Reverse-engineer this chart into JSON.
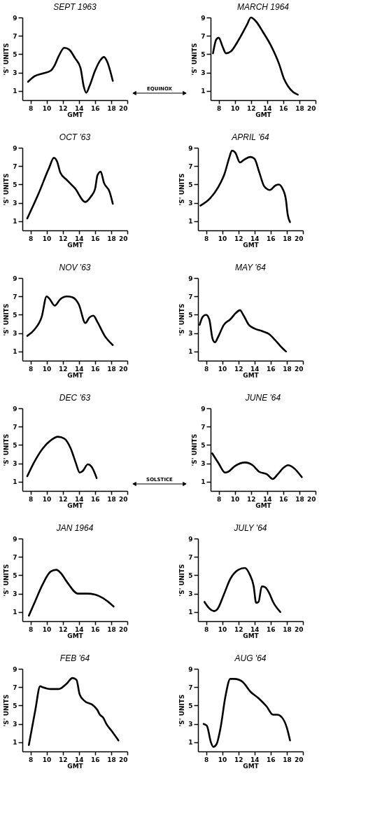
{
  "chart_data": [
    {
      "type": "line",
      "title": "SEPT 1963",
      "xlabel": "GMT",
      "ylabel": "'S' UNITS",
      "xlim": [
        7,
        20
      ],
      "ylim": [
        0,
        9
      ],
      "xticks": [
        8,
        10,
        12,
        14,
        16,
        18,
        20
      ],
      "yticks": [
        1,
        3,
        5,
        7,
        9
      ],
      "grid": false,
      "annotations": [
        "EQUINOX"
      ],
      "series": [
        {
          "color": "#000000",
          "x": [
            7.7,
            8.5,
            9.5,
            10.5,
            11,
            11.5,
            12.2,
            12.8,
            13.5,
            14.2,
            14.6,
            14.9,
            15.3,
            16,
            16.7,
            17.1,
            17.5,
            18.2
          ],
          "values": [
            2.0,
            2.6,
            2.9,
            3.2,
            3.8,
            4.8,
            5.7,
            5.5,
            4.6,
            3.5,
            1.5,
            0.8,
            1.5,
            3.2,
            4.4,
            4.7,
            4.2,
            2.1
          ]
        }
      ]
    },
    {
      "type": "line",
      "title": "MARCH 1964",
      "xlabel": "GMT",
      "ylabel": "'S' UNITS",
      "xlim": [
        7,
        20
      ],
      "ylim": [
        0,
        9
      ],
      "xticks": [
        8,
        10,
        12,
        14,
        16,
        18,
        20
      ],
      "yticks": [
        1,
        3,
        5,
        7,
        9
      ],
      "grid": false,
      "series": [
        {
          "color": "#000000",
          "x": [
            7.3,
            7.7,
            8,
            8.5,
            8.9,
            9.5,
            10.5,
            11.5,
            12,
            12.6,
            13.5,
            14.5,
            15.5,
            16.1,
            16.6,
            17.2,
            17.8
          ],
          "values": [
            5.1,
            6.6,
            6.8,
            5.8,
            5.1,
            5.3,
            6.6,
            8.2,
            9.0,
            8.6,
            7.4,
            5.9,
            3.9,
            2.3,
            1.5,
            0.9,
            0.6
          ]
        }
      ]
    },
    {
      "type": "line",
      "title": "OCT '63",
      "xlabel": "GMT",
      "ylabel": "'S' UNITS",
      "xlim": [
        7,
        20
      ],
      "ylim": [
        0,
        9
      ],
      "xticks": [
        8,
        10,
        12,
        14,
        16,
        18,
        20
      ],
      "yticks": [
        1,
        3,
        5,
        7,
        9
      ],
      "grid": false,
      "series": [
        {
          "color": "#000000",
          "x": [
            7.6,
            9,
            10.3,
            10.9,
            11.3,
            11.7,
            12.5,
            13.5,
            14.8,
            15.5,
            16,
            16.3,
            16.7,
            17.1,
            17.8,
            18.2
          ],
          "values": [
            1.3,
            4.0,
            6.8,
            7.9,
            7.5,
            6.3,
            5.5,
            4.6,
            3.1,
            3.7,
            4.5,
            6.0,
            6.4,
            5.2,
            4.2,
            2.9
          ]
        }
      ]
    },
    {
      "type": "line",
      "title": "APRIL '64",
      "xlabel": "GMT",
      "ylabel": "'S' UNITS",
      "xlim": [
        7,
        20
      ],
      "ylim": [
        0,
        9
      ],
      "xticks": [
        8,
        10,
        12,
        14,
        16,
        18,
        20
      ],
      "yticks": [
        1,
        3,
        5,
        7,
        9
      ],
      "grid": false,
      "series": [
        {
          "color": "#000000",
          "x": [
            7.3,
            8.5,
            9.5,
            10.3,
            10.9,
            11.2,
            11.6,
            12.2,
            12.7,
            13.5,
            14,
            14.6,
            15.2,
            15.9,
            16.6,
            17,
            17.5,
            17.9,
            18.1,
            18.4
          ],
          "values": [
            2.7,
            3.5,
            4.7,
            6.2,
            8.0,
            8.7,
            8.5,
            7.4,
            7.7,
            8.0,
            7.8,
            6.3,
            4.8,
            4.4,
            4.9,
            5.0,
            4.5,
            3.3,
            1.8,
            0.9
          ]
        }
      ]
    },
    {
      "type": "line",
      "title": "NOV '63",
      "xlabel": "GMT",
      "ylabel": "'S' UNITS",
      "xlim": [
        7,
        20
      ],
      "ylim": [
        0,
        9
      ],
      "xticks": [
        8,
        10,
        12,
        14,
        16,
        18,
        20
      ],
      "yticks": [
        1,
        3,
        5,
        7,
        9
      ],
      "grid": false,
      "series": [
        {
          "color": "#000000",
          "x": [
            7.6,
            8.5,
            9.4,
            10,
            10.3,
            11,
            11.7,
            12.5,
            13.2,
            14,
            14.8,
            15.3,
            15.8,
            16.3,
            17.2,
            18.2
          ],
          "values": [
            2.7,
            3.4,
            4.8,
            7.0,
            6.8,
            6.0,
            6.7,
            7.0,
            6.9,
            6.1,
            4.1,
            4.7,
            4.9,
            4.2,
            2.7,
            1.7
          ]
        }
      ]
    },
    {
      "type": "line",
      "title": "MAY '64",
      "xlabel": "GMT",
      "ylabel": "'S' UNITS",
      "xlim": [
        7,
        20
      ],
      "ylim": [
        0,
        9
      ],
      "xticks": [
        8,
        10,
        12,
        14,
        16,
        18,
        20
      ],
      "yticks": [
        1,
        3,
        5,
        7,
        9
      ],
      "grid": false,
      "series": [
        {
          "color": "#000000",
          "x": [
            7.2,
            7.6,
            8,
            8.4,
            8.8,
            9.1,
            9.5,
            10.2,
            11,
            11.7,
            12.2,
            12.6,
            13.3,
            14,
            15,
            15.8,
            16.5,
            17.2,
            17.9
          ],
          "values": [
            3.9,
            4.8,
            5.0,
            4.5,
            2.4,
            2.0,
            2.6,
            3.9,
            4.5,
            5.2,
            5.5,
            5.0,
            3.9,
            3.5,
            3.2,
            2.9,
            2.3,
            1.6,
            1.0
          ]
        }
      ]
    },
    {
      "type": "line",
      "title": "DEC '63",
      "xlabel": "GMT",
      "ylabel": "'S' UNITS",
      "xlim": [
        7,
        20
      ],
      "ylim": [
        0,
        9
      ],
      "xticks": [
        8,
        10,
        12,
        14,
        16,
        18,
        20
      ],
      "yticks": [
        1,
        3,
        5,
        7,
        9
      ],
      "grid": false,
      "annotations": [
        "SOLSTICE"
      ],
      "series": [
        {
          "color": "#000000",
          "x": [
            7.6,
            8.5,
            9.5,
            10.5,
            11.4,
            12.2,
            13,
            13.6,
            14.1,
            14.5,
            15.1,
            15.6,
            16.2
          ],
          "values": [
            1.6,
            3.2,
            4.6,
            5.5,
            5.9,
            5.7,
            4.6,
            3.1,
            2.0,
            2.2,
            2.9,
            2.6,
            1.4
          ]
        }
      ]
    },
    {
      "type": "line",
      "title": "JUNE '64",
      "xlabel": "GMT",
      "ylabel": "'S' UNITS",
      "xlim": [
        7,
        20
      ],
      "ylim": [
        0,
        9
      ],
      "xticks": [
        8,
        10,
        12,
        14,
        16,
        18,
        20
      ],
      "yticks": [
        1,
        3,
        5,
        7,
        9
      ],
      "grid": false,
      "series": [
        {
          "color": "#000000",
          "x": [
            7.2,
            8,
            8.8,
            9.2,
            10,
            11.3,
            12.2,
            13,
            14,
            14.7,
            15.3,
            16,
            16.6,
            17.3,
            18.3
          ],
          "values": [
            4.1,
            3.0,
            2.0,
            2.1,
            2.7,
            3.1,
            2.8,
            2.1,
            1.8,
            1.3,
            1.8,
            2.5,
            2.8,
            2.5,
            1.5
          ]
        }
      ]
    },
    {
      "type": "line",
      "title": "JAN 1964",
      "xlabel": "GMT",
      "ylabel": "'S' UNITS",
      "xlim": [
        7,
        20
      ],
      "ylim": [
        0,
        9
      ],
      "xticks": [
        8,
        10,
        12,
        14,
        16,
        18,
        20
      ],
      "yticks": [
        1,
        3,
        5,
        7,
        9
      ],
      "grid": false,
      "series": [
        {
          "color": "#000000",
          "x": [
            7.8,
            8.5,
            9.5,
            10.5,
            11.2,
            11.8,
            12.5,
            13.9,
            15,
            16,
            17,
            18.3
          ],
          "values": [
            0.6,
            2.0,
            4.0,
            5.4,
            5.6,
            5.2,
            4.3,
            3.0,
            3.0,
            2.9,
            2.5,
            1.6
          ]
        }
      ]
    },
    {
      "type": "line",
      "title": "JULY '64",
      "xlabel": "GMT",
      "ylabel": "'S' UNITS",
      "xlim": [
        7,
        20
      ],
      "ylim": [
        0,
        9
      ],
      "xticks": [
        8,
        10,
        12,
        14,
        16,
        18,
        20
      ],
      "yticks": [
        1,
        3,
        5,
        7,
        9
      ],
      "grid": false,
      "series": [
        {
          "color": "#000000",
          "x": [
            7.8,
            8.4,
            9,
            9.4,
            10.2,
            11,
            12,
            12.8,
            13.4,
            13.9,
            14.2,
            14.5,
            14.9,
            15.3,
            15.8,
            16.3,
            17.2
          ],
          "values": [
            2.1,
            1.4,
            1.1,
            1.3,
            2.9,
            4.6,
            5.6,
            5.8,
            5.1,
            3.8,
            2.0,
            2.1,
            3.8,
            3.7,
            3.1,
            2.1,
            1.0
          ]
        }
      ]
    },
    {
      "type": "line",
      "title": "FEB '64",
      "xlabel": "GMT",
      "ylabel": "'S' UNITS",
      "xlim": [
        7,
        20
      ],
      "ylim": [
        0,
        9
      ],
      "xticks": [
        8,
        10,
        12,
        14,
        16,
        18,
        20
      ],
      "yticks": [
        1,
        3,
        5,
        7,
        9
      ],
      "grid": false,
      "series": [
        {
          "color": "#000000",
          "x": [
            7.8,
            8.6,
            9.2,
            9.5,
            10.5,
            11.5,
            12.5,
            13.2,
            13.7,
            14.1,
            14.7,
            15.8,
            16.3,
            16.6,
            17,
            17.4,
            18,
            18.9
          ],
          "values": [
            0.7,
            4.5,
            7.1,
            7.0,
            6.8,
            6.8,
            7.4,
            8.0,
            7.8,
            6.2,
            5.5,
            5.0,
            4.5,
            4.0,
            3.7,
            3.0,
            2.3,
            1.2
          ]
        }
      ]
    },
    {
      "type": "line",
      "title": "AUG '64",
      "xlabel": "GMT",
      "ylabel": "'S' UNITS",
      "xlim": [
        7,
        20
      ],
      "ylim": [
        0,
        9
      ],
      "xticks": [
        8,
        10,
        12,
        14,
        16,
        18,
        20
      ],
      "yticks": [
        1,
        3,
        5,
        7,
        9
      ],
      "grid": false,
      "series": [
        {
          "color": "#000000",
          "x": [
            7.7,
            8.1,
            8.6,
            8.9,
            9.3,
            9.8,
            10.4,
            11,
            11.5,
            12.5,
            13.5,
            14.5,
            15.5,
            16.3,
            16.8,
            17.4,
            18,
            18.4
          ],
          "values": [
            3.0,
            2.8,
            1.0,
            0.5,
            0.8,
            2.6,
            6.0,
            7.9,
            7.9,
            7.6,
            6.5,
            5.8,
            4.9,
            4.0,
            4.0,
            3.7,
            2.6,
            1.2
          ]
        }
      ]
    }
  ]
}
